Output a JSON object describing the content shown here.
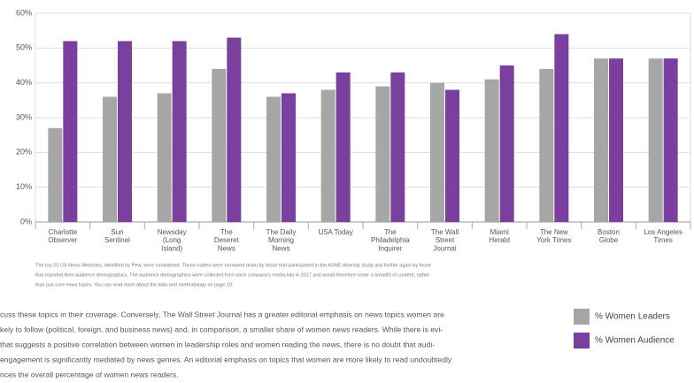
{
  "chart_data": {
    "type": "bar",
    "categories": [
      "Charlotte\nObserver",
      "Sun\nSentinel",
      "Newsday\n(Long\nIsland)",
      "The\nDeseret\nNews",
      "The Daily\nMorning\nNews",
      "USA Today",
      "The\nPhiladelphia\nInquirer",
      "The Wall\nStreet\nJournal",
      "Miami\nHerald",
      "The New\nYork Times",
      "Boston\nGlobe",
      "Los Angeles\nTimes"
    ],
    "series": [
      {
        "name": "% Women Leaders",
        "color": "#a6a6a6",
        "values": [
          27,
          36,
          37,
          44,
          36,
          38,
          39,
          40,
          41,
          44,
          47,
          47
        ]
      },
      {
        "name": "% Women Audience",
        "color": "#7b3f9e",
        "values": [
          52,
          52,
          52,
          53,
          37,
          43,
          43,
          38,
          45,
          54,
          47,
          47
        ]
      }
    ],
    "ylim": [
      0,
      60
    ],
    "yticks": [
      {
        "value": 0,
        "label": "0%"
      },
      {
        "value": 10,
        "label": "10%"
      },
      {
        "value": 20,
        "label": "20%"
      },
      {
        "value": 30,
        "label": "30%"
      },
      {
        "value": 40,
        "label": "40%"
      },
      {
        "value": 50,
        "label": "50%"
      },
      {
        "value": 60,
        "label": "60%"
      }
    ],
    "grid": true,
    "legend": "right",
    "footnote": [
      "The top 20 US News Websites, identified by Pew, were considered. Those outlets were narrowed down by those that participated in the ASNE diversity study and further again by those",
      "that reported their audience demographics. The audience demographics were collected from each company's media kits in 2017 and would therefore cover a breadth of content, rather",
      "than just core news topics. You can read more about the data and methodology on page 10."
    ],
    "body_text": [
      "cuss these topics in their coverage. Conversely, The Wall Street Journal has a greater editorial emphasis on news topics women are",
      "kely to follow (political, foreign, and business news) and, in comparison, a smaller share of women news readers. While there is evi-",
      "that suggests a positive correlation between women in leadership roles and women reading the news, there is no doubt that audi-",
      "engagement is significantly mediated by news genres. An editorial emphasis on topics that women are more likely to read undoubtedly",
      "nces the overall percentage of women news readers."
    ]
  }
}
